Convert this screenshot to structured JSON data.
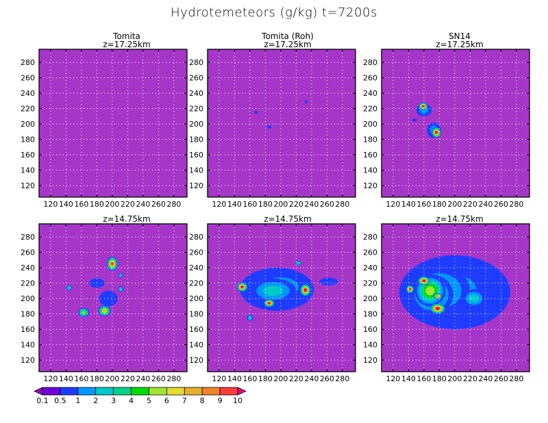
{
  "figure_title": "Hydrotemeteors (g/kg) t=7200s",
  "chart_data": [
    {
      "type": "heatmap",
      "row": 0,
      "col": 0,
      "title": "Tomita",
      "subtitle": "z=17.25km",
      "xlim": [
        105,
        297
      ],
      "ylim": [
        105,
        297
      ],
      "xticks": [
        120,
        140,
        160,
        180,
        200,
        220,
        240,
        260,
        280
      ],
      "yticks": [
        120,
        140,
        160,
        180,
        200,
        220,
        240,
        260,
        280
      ],
      "grid": true,
      "background_level": "0.1-0.5",
      "features": []
    },
    {
      "type": "heatmap",
      "row": 0,
      "col": 1,
      "title": "Tomita (Roh)",
      "subtitle": "z=17.25km",
      "xlim": [
        105,
        297
      ],
      "ylim": [
        105,
        297
      ],
      "xticks": [
        120,
        140,
        160,
        180,
        200,
        220,
        240,
        260,
        280
      ],
      "yticks": [
        120,
        140,
        160,
        180,
        200,
        220,
        240,
        260,
        280
      ],
      "grid": true,
      "background_level": "0.1-0.5",
      "features": [
        {
          "x": 185,
          "y": 196,
          "rx": 3,
          "ry": 2,
          "peak": 0.5
        },
        {
          "x": 168,
          "y": 215,
          "rx": 2,
          "ry": 2,
          "peak": 0.5
        },
        {
          "x": 233,
          "y": 229,
          "rx": 2,
          "ry": 2,
          "peak": 0.5
        }
      ]
    },
    {
      "type": "heatmap",
      "row": 0,
      "col": 2,
      "title": "SN14",
      "subtitle": "z=17.25km",
      "xlim": [
        105,
        297
      ],
      "ylim": [
        105,
        297
      ],
      "xticks": [
        120,
        140,
        160,
        180,
        200,
        220,
        240,
        260,
        280
      ],
      "yticks": [
        120,
        140,
        160,
        180,
        200,
        220,
        240,
        260,
        280
      ],
      "grid": true,
      "background_level": "0.1-0.5",
      "features": [
        {
          "x": 160,
          "y": 218,
          "rx": 10,
          "ry": 8,
          "peak": 1.5
        },
        {
          "x": 173,
          "y": 192,
          "rx": 9,
          "ry": 10,
          "peak": 1.5
        },
        {
          "x": 159,
          "y": 223,
          "rx": 6,
          "ry": 5,
          "peak": 10
        },
        {
          "x": 176,
          "y": 189,
          "rx": 6,
          "ry": 7,
          "peak": 10
        },
        {
          "x": 148,
          "y": 205,
          "rx": 3,
          "ry": 2,
          "peak": 0.5
        }
      ]
    },
    {
      "type": "heatmap",
      "row": 1,
      "col": 0,
      "title": "",
      "subtitle": "z=14.75km",
      "xlim": [
        105,
        297
      ],
      "ylim": [
        105,
        297
      ],
      "xticks": [
        120,
        140,
        160,
        180,
        200,
        220,
        240,
        260,
        280
      ],
      "yticks": [
        120,
        140,
        160,
        180,
        200,
        220,
        240,
        260,
        280
      ],
      "grid": true,
      "background_level": "0.1-0.5",
      "features": [
        {
          "x": 200,
          "y": 245,
          "rx": 7,
          "ry": 9,
          "peak": 9
        },
        {
          "x": 163,
          "y": 182,
          "rx": 7,
          "ry": 6,
          "peak": 5
        },
        {
          "x": 190,
          "y": 184,
          "rx": 8,
          "ry": 7,
          "peak": 7
        },
        {
          "x": 144,
          "y": 214,
          "rx": 4,
          "ry": 3,
          "peak": 3
        },
        {
          "x": 211,
          "y": 230,
          "rx": 3,
          "ry": 3,
          "peak": 3
        },
        {
          "x": 211,
          "y": 212,
          "rx": 3,
          "ry": 4,
          "peak": 3
        },
        {
          "x": 180,
          "y": 220,
          "rx": 10,
          "ry": 6,
          "peak": 0.5
        },
        {
          "x": 195,
          "y": 200,
          "rx": 12,
          "ry": 10,
          "peak": 0.5
        }
      ]
    },
    {
      "type": "heatmap",
      "row": 1,
      "col": 1,
      "title": "",
      "subtitle": "z=14.75km",
      "xlim": [
        105,
        297
      ],
      "ylim": [
        105,
        297
      ],
      "xticks": [
        120,
        140,
        160,
        180,
        200,
        220,
        240,
        260,
        280
      ],
      "yticks": [
        120,
        140,
        160,
        180,
        200,
        220,
        240,
        260,
        280
      ],
      "grid": true,
      "background_level": "0.1-0.5",
      "features": [
        {
          "x": 195,
          "y": 212,
          "rx": 48,
          "ry": 28,
          "peak": 0.5
        },
        {
          "x": 200,
          "y": 215,
          "rx": 40,
          "ry": 22,
          "peak": 1
        },
        {
          "x": 190,
          "y": 210,
          "rx": 30,
          "ry": 16,
          "peak": 2
        },
        {
          "x": 150,
          "y": 215,
          "rx": 7,
          "ry": 6,
          "peak": 10
        },
        {
          "x": 185,
          "y": 194,
          "rx": 7,
          "ry": 5,
          "peak": 10
        },
        {
          "x": 232,
          "y": 211,
          "rx": 7,
          "ry": 8,
          "peak": 10
        },
        {
          "x": 223,
          "y": 246,
          "rx": 4,
          "ry": 3,
          "peak": 4
        },
        {
          "x": 160,
          "y": 175,
          "rx": 4,
          "ry": 4,
          "peak": 2
        },
        {
          "x": 262,
          "y": 222,
          "rx": 12,
          "ry": 5,
          "peak": 0.5
        }
      ]
    },
    {
      "type": "heatmap",
      "row": 1,
      "col": 2,
      "title": "",
      "subtitle": "z=14.75km",
      "xlim": [
        105,
        297
      ],
      "ylim": [
        105,
        297
      ],
      "xticks": [
        120,
        140,
        160,
        180,
        200,
        220,
        240,
        260,
        280
      ],
      "yticks": [
        120,
        140,
        160,
        180,
        200,
        220,
        240,
        260,
        280
      ],
      "grid": true,
      "background_level": "0.1-0.5",
      "features": [
        {
          "x": 200,
          "y": 208,
          "rx": 72,
          "ry": 48,
          "peak": 0.5
        },
        {
          "x": 195,
          "y": 210,
          "rx": 58,
          "ry": 38,
          "peak": 1
        },
        {
          "x": 180,
          "y": 210,
          "rx": 40,
          "ry": 32,
          "peak": 2
        },
        {
          "x": 170,
          "y": 205,
          "rx": 28,
          "ry": 26,
          "peak": 3
        },
        {
          "x": 168,
          "y": 210,
          "rx": 20,
          "ry": 20,
          "peak": 5
        },
        {
          "x": 160,
          "y": 223,
          "rx": 8,
          "ry": 6,
          "peak": 10
        },
        {
          "x": 142,
          "y": 212,
          "rx": 5,
          "ry": 5,
          "peak": 10
        },
        {
          "x": 178,
          "y": 187,
          "rx": 10,
          "ry": 7,
          "peak": 10
        },
        {
          "x": 178,
          "y": 203,
          "rx": 6,
          "ry": 4,
          "peak": 8
        },
        {
          "x": 225,
          "y": 200,
          "rx": 15,
          "ry": 12,
          "peak": 2
        }
      ]
    }
  ],
  "colorbar": {
    "labels": [
      "0.1",
      "0.5",
      "1",
      "2",
      "3",
      "4",
      "5",
      "6",
      "7",
      "8",
      "9",
      "10"
    ],
    "colors": [
      "#a000c8",
      "#6e00dc",
      "#1e3cff",
      "#0096ff",
      "#00c8c8",
      "#00d28c",
      "#00dc00",
      "#a0e632",
      "#e6dc32",
      "#e6af2d",
      "#f08228",
      "#fa3c3c",
      "#f00082"
    ],
    "background_color": "#a636c8",
    "grid_color": "#ffffff"
  }
}
